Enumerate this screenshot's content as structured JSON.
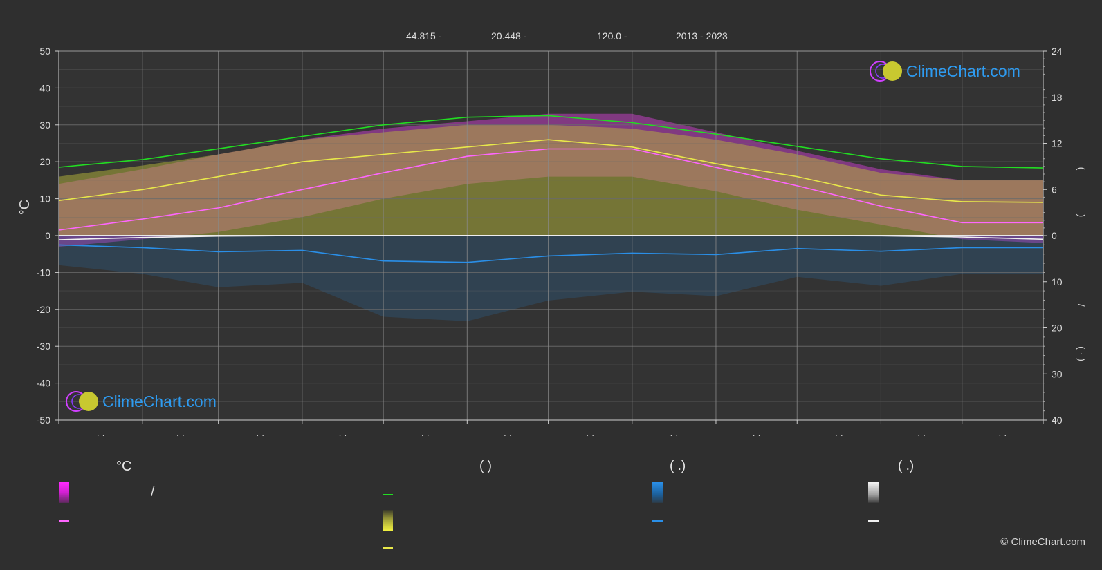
{
  "header": {
    "lat": "44.815 -",
    "lon": "20.448 -",
    "elev": "120.0 -",
    "years": "2013 - 2023"
  },
  "axes": {
    "left_unit": "°C",
    "right_top_paren_open": "(",
    "right_top_paren_close": ")",
    "right_mid_slash": "/",
    "right_low_paren": "(   ·   )",
    "month_marks": [
      "· ·",
      "· ·",
      "· ·",
      "· ·",
      "· ·",
      "· ·",
      "· ·",
      "· ·",
      "· ·",
      "· ·",
      "· ·",
      "· ·"
    ]
  },
  "legend": {
    "col1_head": "°C",
    "col2_head": "(            )",
    "col3_head": "(   .)",
    "col4_head": "(   .)",
    "slash": "/"
  },
  "logo": {
    "text": "ClimeChart.com"
  },
  "copyright": "© ClimeChart.com",
  "colors": {
    "background": "#2f2f2f",
    "grid": "#6a6a6a",
    "daylight": "#22dd22",
    "sunshine": "#e8e84a",
    "temp_avg_max_band": "#e040e0",
    "temp_mean": "#ff66ff",
    "precip": "#2a8fe8",
    "snow": "#f0f0f0",
    "logo": "#2e9bf0"
  },
  "chart_data": {
    "type": "line",
    "x_unit": "day of year",
    "left_axis": {
      "label": "°C",
      "ylim": [
        -50,
        50
      ],
      "ticks": [
        50,
        40,
        30,
        20,
        10,
        0,
        -10,
        -20,
        -30,
        -40,
        -50
      ]
    },
    "right_axis_top": {
      "ylim": [
        0,
        24
      ],
      "ticks": [
        24,
        18,
        12,
        6,
        0
      ]
    },
    "right_axis_bottom": {
      "ylim": [
        0,
        40
      ],
      "ticks": [
        0,
        10,
        20,
        30,
        40
      ]
    },
    "grid": true,
    "series": [
      {
        "color": "#22dd22",
        "axis": "right_top",
        "x": [
          1,
          32,
          60,
          91,
          121,
          152,
          182,
          213,
          244,
          274,
          305,
          335,
          365
        ],
        "values": [
          8.9,
          9.9,
          11.3,
          12.9,
          14.4,
          15.4,
          15.6,
          14.7,
          13.2,
          11.6,
          10.0,
          9.0,
          8.8
        ]
      },
      {
        "color": "#e8e84a",
        "axis": "left",
        "x": [
          1,
          32,
          60,
          91,
          121,
          152,
          182,
          213,
          244,
          274,
          305,
          335,
          365
        ],
        "values": [
          9.5,
          12.5,
          16,
          20,
          22,
          24,
          26,
          24,
          19.5,
          16,
          11,
          9.2,
          9
        ]
      },
      {
        "color": "#ff66ff",
        "axis": "left",
        "x": [
          1,
          32,
          60,
          91,
          121,
          152,
          182,
          213,
          244,
          274,
          305,
          335,
          365
        ],
        "values": [
          1.5,
          4.5,
          7.5,
          12.5,
          17,
          21.5,
          23.5,
          23.5,
          18.5,
          13.5,
          8,
          3.5,
          3.5
        ]
      },
      {
        "color": "#2a8fe8",
        "axis": "right_bottom",
        "x": [
          1,
          32,
          60,
          91,
          121,
          152,
          182,
          213,
          244,
          274,
          305,
          335,
          365
        ],
        "values": [
          2.0,
          2.6,
          3.5,
          3.2,
          5.5,
          5.8,
          4.4,
          3.8,
          4.1,
          2.8,
          3.4,
          2.6,
          2.6
        ]
      },
      {
        "color": "#f0f0f0",
        "axis": "right_bottom",
        "x": [
          1,
          32,
          60,
          91,
          121,
          152,
          182,
          213,
          244,
          274,
          305,
          335,
          365
        ],
        "values": [
          0.9,
          0.4,
          0.1,
          0,
          0,
          0,
          0,
          0,
          0,
          0,
          0.05,
          0.3,
          0.8
        ]
      }
    ],
    "bands": [
      {
        "name_key": "temp_range",
        "color": "#e040e0",
        "x": [
          1,
          32,
          60,
          91,
          121,
          152,
          182,
          213,
          244,
          274,
          305,
          335,
          365
        ],
        "low": [
          -3,
          -1,
          1,
          5,
          10,
          14,
          16,
          16,
          12,
          7,
          3,
          -1,
          -2
        ],
        "high": [
          14,
          18,
          22,
          26,
          29,
          31,
          33,
          33,
          28,
          23,
          18,
          15,
          15
        ]
      },
      {
        "name_key": "sunshine_band",
        "color": "#b8b83a",
        "x": [
          1,
          32,
          60,
          91,
          121,
          152,
          182,
          213,
          244,
          274,
          305,
          335,
          365
        ],
        "low": [
          0,
          0,
          0,
          0,
          0,
          0,
          0,
          0,
          0,
          0,
          0,
          0,
          0
        ],
        "high": [
          16,
          19,
          22,
          26,
          28,
          30,
          30,
          29,
          26,
          22,
          17,
          15,
          15
        ]
      }
    ]
  }
}
